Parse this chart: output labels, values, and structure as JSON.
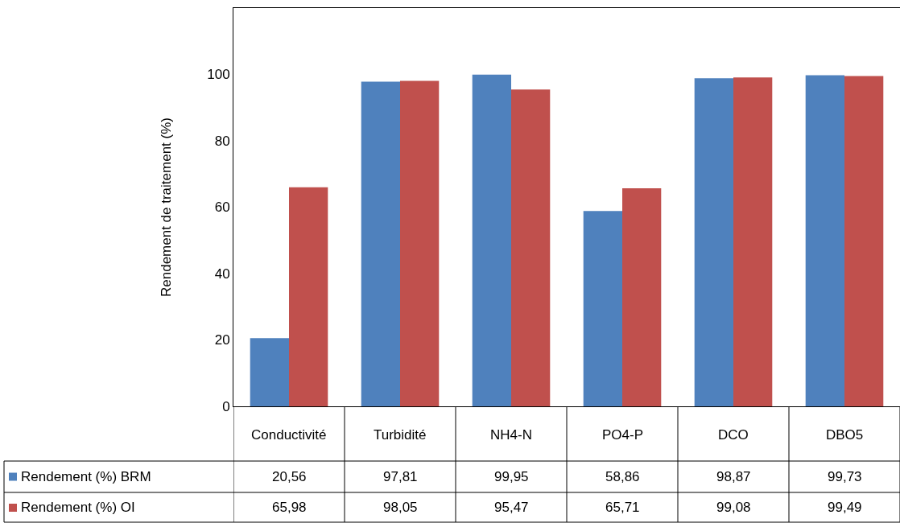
{
  "chart_data": {
    "type": "bar",
    "ylabel": "Rendement de traitement (%)",
    "categories": [
      "Conductivité",
      "Turbidité",
      "NH4-N",
      "PO4-P",
      "DCO",
      "DBO5"
    ],
    "series": [
      {
        "name": "Rendement (%) BRM",
        "color": "#4f81bd",
        "values": [
          20.56,
          97.81,
          99.95,
          58.86,
          98.87,
          99.73
        ],
        "value_labels": [
          "20,56",
          "97,81",
          "99,95",
          "58,86",
          "98,87",
          "99,73"
        ]
      },
      {
        "name": "Rendement (%) OI",
        "color": "#c0504d",
        "values": [
          65.98,
          98.05,
          95.47,
          65.71,
          99.08,
          99.49
        ],
        "value_labels": [
          "65,98",
          "98,05",
          "95,47",
          "65,71",
          "99,08",
          "99,49"
        ]
      }
    ],
    "ylim": [
      0,
      120
    ],
    "yticks": [
      0,
      20,
      40,
      60,
      80,
      100
    ],
    "legend": "bottom left"
  }
}
